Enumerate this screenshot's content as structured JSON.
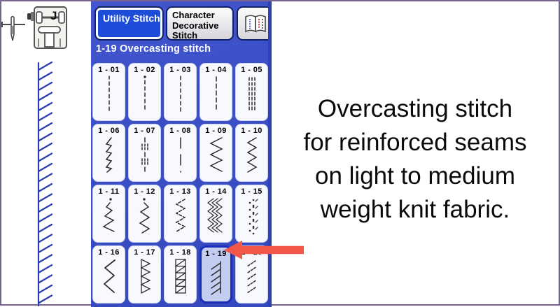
{
  "left_panel": {
    "needle_icon": "sewing-needle-icon",
    "presser_foot": {
      "icon": "presser-foot-icon",
      "label": "J"
    },
    "stitch_preview_icon": "overcast-stitch-preview"
  },
  "tabs": [
    {
      "id": "utility",
      "label": "Utility Stitch",
      "selected": true
    },
    {
      "id": "character-decorative",
      "label": "Character Decorative Stitch",
      "selected": false
    },
    {
      "id": "stitch-guide",
      "label": "",
      "icon": "stitch-guide-book-icon",
      "selected": false
    }
  ],
  "status_bar": {
    "text": "1-19 Overcasting stitch"
  },
  "stitch_grid": {
    "columns": 5,
    "rows": 4,
    "cells": [
      {
        "label": "1 - 01",
        "glyph": "straight-stitch-left",
        "selected": false
      },
      {
        "label": "1 - 02",
        "glyph": "straight-stitch-locking",
        "selected": false
      },
      {
        "label": "1 - 03",
        "glyph": "straight-stitch-center",
        "selected": false
      },
      {
        "label": "1 - 04",
        "glyph": "straight-stitch-long",
        "selected": false
      },
      {
        "label": "1 - 05",
        "glyph": "triple-stretch-stitch",
        "selected": false
      },
      {
        "label": "1 - 06",
        "glyph": "stem-stretch-stitch",
        "selected": false
      },
      {
        "label": "1 - 07",
        "glyph": "dashed-triple-stitch",
        "selected": false
      },
      {
        "label": "1 - 08",
        "glyph": "basting-stitch",
        "selected": false
      },
      {
        "label": "1 - 09",
        "glyph": "zigzag-wide",
        "selected": false
      },
      {
        "label": "1 - 10",
        "glyph": "zigzag-narrow",
        "selected": false
      },
      {
        "label": "1 - 11",
        "glyph": "zigzag-dot-right",
        "selected": false
      },
      {
        "label": "1 - 12",
        "glyph": "zigzag-dot-left",
        "selected": false
      },
      {
        "label": "1 - 13",
        "glyph": "elastic-zigzag",
        "selected": false
      },
      {
        "label": "1 - 14",
        "glyph": "dense-triple-chevron",
        "selected": false
      },
      {
        "label": "1 - 15",
        "glyph": "dotted-chevron",
        "selected": false
      },
      {
        "label": "1 - 16",
        "glyph": "serpentine-wave",
        "selected": false
      },
      {
        "label": "1 - 17",
        "glyph": "triangle-zigzag",
        "selected": false
      },
      {
        "label": "1 - 18",
        "glyph": "overcast-ladder",
        "selected": false
      },
      {
        "label": "1 - 19",
        "glyph": "overcast-diagonal",
        "selected": true
      },
      {
        "label": "1 - 20",
        "glyph": "overcast-dashed-diagonal",
        "selected": false
      }
    ]
  },
  "annotation": {
    "arrow_icon": "red-arrow-left",
    "caption_lines": [
      "Overcasting stitch",
      "for reinforced seams",
      "on light to medium",
      "weight knit fabric."
    ]
  },
  "colors": {
    "panel_blue": "#3a4fc6",
    "panel_edge": "#2e40b2",
    "selected_tab_blue": "#1d4cd8",
    "selected_cell_fill": "#c3cdf2",
    "selected_cell_border": "#1b2eb8",
    "arrow_red": "#f2574a",
    "stitch_blue": "#2a3cb0",
    "frame_purple": "#77638f"
  }
}
